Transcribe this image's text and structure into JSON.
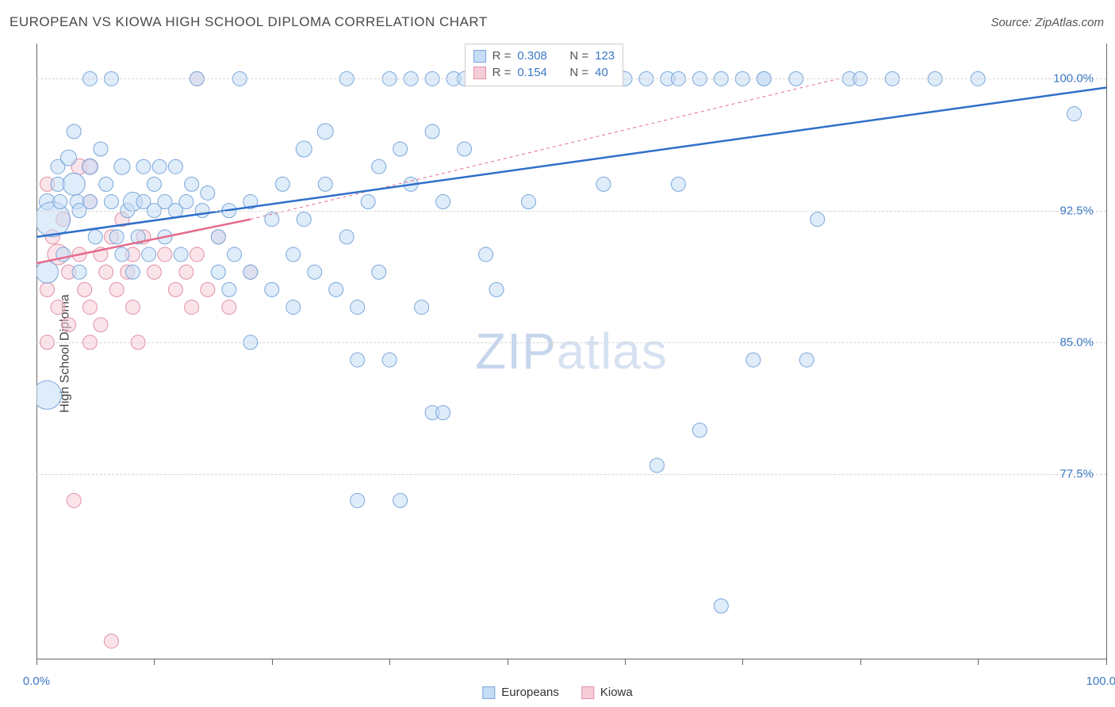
{
  "title": "EUROPEAN VS KIOWA HIGH SCHOOL DIPLOMA CORRELATION CHART",
  "title_color": "#4a4a4a",
  "source_label": "Source: ZipAtlas.com",
  "source_color": "#555555",
  "ylabel": "High School Diploma",
  "watermark_text_a": "ZIP",
  "watermark_text_b": "atlas",
  "chart": {
    "type": "scatter",
    "background_color": "#ffffff",
    "xlim": [
      0,
      100
    ],
    "ylim": [
      67,
      102
    ],
    "x_ticks_labels": {
      "0": "0.0%",
      "100": "100.0%"
    },
    "x_tick_positions": [
      0,
      11,
      22,
      33,
      44,
      55,
      66,
      77,
      88,
      100
    ],
    "y_gridlines": [
      77.5,
      85.0,
      92.5,
      100.0
    ],
    "y_gridline_labels": {
      "77.5": "77.5%",
      "85.0": "85.0%",
      "92.5": "92.5%",
      "100.0": "100.0%"
    },
    "grid_color": "#d6d6d6",
    "axis_color": "#666666",
    "tick_label_color": "#3b78c4",
    "tick_label_fontsize": 15
  },
  "series": {
    "europeans": {
      "label": "Europeans",
      "color_fill": "#c5ddf6",
      "color_stroke": "#7ba7d9",
      "trend_color": "#2f6fc9",
      "trend_width": 2.5,
      "trend_dash": "none",
      "R": "0.308",
      "N": "123",
      "trend": {
        "x1": 0,
        "y1": 91,
        "x2": 100,
        "y2": 99.5
      },
      "points": [
        {
          "x": 1,
          "y": 93,
          "r": 10
        },
        {
          "x": 1.5,
          "y": 92,
          "r": 22
        },
        {
          "x": 1,
          "y": 89,
          "r": 14
        },
        {
          "x": 1,
          "y": 82,
          "r": 18
        },
        {
          "x": 2,
          "y": 95,
          "r": 9
        },
        {
          "x": 2,
          "y": 94,
          "r": 9
        },
        {
          "x": 2.2,
          "y": 93,
          "r": 9
        },
        {
          "x": 2.5,
          "y": 90,
          "r": 9
        },
        {
          "x": 3,
          "y": 95.5,
          "r": 10
        },
        {
          "x": 3.5,
          "y": 94,
          "r": 14
        },
        {
          "x": 3.5,
          "y": 97,
          "r": 9
        },
        {
          "x": 3.8,
          "y": 93,
          "r": 9
        },
        {
          "x": 4,
          "y": 92.5,
          "r": 9
        },
        {
          "x": 4,
          "y": 89,
          "r": 9
        },
        {
          "x": 5,
          "y": 95,
          "r": 10
        },
        {
          "x": 5,
          "y": 93,
          "r": 9
        },
        {
          "x": 5.5,
          "y": 91,
          "r": 9
        },
        {
          "x": 5,
          "y": 100,
          "r": 9
        },
        {
          "x": 6,
          "y": 96,
          "r": 9
        },
        {
          "x": 6.5,
          "y": 94,
          "r": 9
        },
        {
          "x": 7,
          "y": 93,
          "r": 9
        },
        {
          "x": 7,
          "y": 100,
          "r": 9
        },
        {
          "x": 7.5,
          "y": 91,
          "r": 9
        },
        {
          "x": 8,
          "y": 95,
          "r": 10
        },
        {
          "x": 8,
          "y": 90,
          "r": 9
        },
        {
          "x": 8.5,
          "y": 92.5,
          "r": 9
        },
        {
          "x": 9,
          "y": 93,
          "r": 12
        },
        {
          "x": 9,
          "y": 89,
          "r": 9
        },
        {
          "x": 9.5,
          "y": 91,
          "r": 9
        },
        {
          "x": 10,
          "y": 95,
          "r": 9
        },
        {
          "x": 10,
          "y": 93,
          "r": 9
        },
        {
          "x": 10.5,
          "y": 90,
          "r": 9
        },
        {
          "x": 11,
          "y": 92.5,
          "r": 9
        },
        {
          "x": 11,
          "y": 94,
          "r": 9
        },
        {
          "x": 11.5,
          "y": 95,
          "r": 9
        },
        {
          "x": 12,
          "y": 93,
          "r": 9
        },
        {
          "x": 12,
          "y": 91,
          "r": 9
        },
        {
          "x": 13,
          "y": 92.5,
          "r": 9
        },
        {
          "x": 13,
          "y": 95,
          "r": 9
        },
        {
          "x": 13.5,
          "y": 90,
          "r": 9
        },
        {
          "x": 14,
          "y": 93,
          "r": 9
        },
        {
          "x": 14.5,
          "y": 94,
          "r": 9
        },
        {
          "x": 15,
          "y": 100,
          "r": 9
        },
        {
          "x": 15.5,
          "y": 92.5,
          "r": 9
        },
        {
          "x": 16,
          "y": 93.5,
          "r": 9
        },
        {
          "x": 17,
          "y": 91,
          "r": 9
        },
        {
          "x": 17,
          "y": 89,
          "r": 9
        },
        {
          "x": 18,
          "y": 92.5,
          "r": 9
        },
        {
          "x": 18,
          "y": 88,
          "r": 9
        },
        {
          "x": 18.5,
          "y": 90,
          "r": 9
        },
        {
          "x": 19,
          "y": 100,
          "r": 9
        },
        {
          "x": 20,
          "y": 93,
          "r": 9
        },
        {
          "x": 20,
          "y": 89,
          "r": 9
        },
        {
          "x": 20,
          "y": 85,
          "r": 9
        },
        {
          "x": 22,
          "y": 92,
          "r": 9
        },
        {
          "x": 22,
          "y": 88,
          "r": 9
        },
        {
          "x": 23,
          "y": 94,
          "r": 9
        },
        {
          "x": 24,
          "y": 90,
          "r": 9
        },
        {
          "x": 24,
          "y": 87,
          "r": 9
        },
        {
          "x": 25,
          "y": 96,
          "r": 10
        },
        {
          "x": 25,
          "y": 92,
          "r": 9
        },
        {
          "x": 26,
          "y": 89,
          "r": 9
        },
        {
          "x": 27,
          "y": 97,
          "r": 10
        },
        {
          "x": 27,
          "y": 94,
          "r": 9
        },
        {
          "x": 28,
          "y": 88,
          "r": 9
        },
        {
          "x": 29,
          "y": 91,
          "r": 9
        },
        {
          "x": 29,
          "y": 100,
          "r": 9
        },
        {
          "x": 30,
          "y": 87,
          "r": 9
        },
        {
          "x": 30,
          "y": 84,
          "r": 9
        },
        {
          "x": 30,
          "y": 76,
          "r": 9
        },
        {
          "x": 31,
          "y": 93,
          "r": 9
        },
        {
          "x": 32,
          "y": 89,
          "r": 9
        },
        {
          "x": 32,
          "y": 95,
          "r": 9
        },
        {
          "x": 33,
          "y": 100,
          "r": 9
        },
        {
          "x": 33,
          "y": 84,
          "r": 9
        },
        {
          "x": 34,
          "y": 96,
          "r": 9
        },
        {
          "x": 34,
          "y": 76,
          "r": 9
        },
        {
          "x": 35,
          "y": 100,
          "r": 9
        },
        {
          "x": 35,
          "y": 94,
          "r": 9
        },
        {
          "x": 36,
          "y": 87,
          "r": 9
        },
        {
          "x": 37,
          "y": 100,
          "r": 9
        },
        {
          "x": 37,
          "y": 97,
          "r": 9
        },
        {
          "x": 37,
          "y": 81,
          "r": 9
        },
        {
          "x": 38,
          "y": 81,
          "r": 9
        },
        {
          "x": 38,
          "y": 93,
          "r": 9
        },
        {
          "x": 39,
          "y": 100,
          "r": 9
        },
        {
          "x": 40,
          "y": 100,
          "r": 9
        },
        {
          "x": 40,
          "y": 96,
          "r": 9
        },
        {
          "x": 41,
          "y": 100,
          "r": 9
        },
        {
          "x": 42,
          "y": 90,
          "r": 9
        },
        {
          "x": 43,
          "y": 100,
          "r": 9
        },
        {
          "x": 43,
          "y": 88,
          "r": 9
        },
        {
          "x": 44,
          "y": 100,
          "r": 9
        },
        {
          "x": 45,
          "y": 100,
          "r": 9
        },
        {
          "x": 46,
          "y": 93,
          "r": 9
        },
        {
          "x": 48,
          "y": 100,
          "r": 9
        },
        {
          "x": 49,
          "y": 100,
          "r": 9
        },
        {
          "x": 50,
          "y": 100,
          "r": 9
        },
        {
          "x": 52,
          "y": 100,
          "r": 9
        },
        {
          "x": 53,
          "y": 94,
          "r": 9
        },
        {
          "x": 55,
          "y": 100,
          "r": 9
        },
        {
          "x": 57,
          "y": 100,
          "r": 9
        },
        {
          "x": 58,
          "y": 78,
          "r": 9
        },
        {
          "x": 59,
          "y": 100,
          "r": 9
        },
        {
          "x": 60,
          "y": 100,
          "r": 9
        },
        {
          "x": 60,
          "y": 94,
          "r": 9
        },
        {
          "x": 62,
          "y": 100,
          "r": 9
        },
        {
          "x": 62,
          "y": 80,
          "r": 9
        },
        {
          "x": 64,
          "y": 100,
          "r": 9
        },
        {
          "x": 64,
          "y": 70,
          "r": 9
        },
        {
          "x": 66,
          "y": 100,
          "r": 9
        },
        {
          "x": 67,
          "y": 84,
          "r": 9
        },
        {
          "x": 68,
          "y": 100,
          "r": 9
        },
        {
          "x": 68,
          "y": 100,
          "r": 9
        },
        {
          "x": 71,
          "y": 100,
          "r": 9
        },
        {
          "x": 72,
          "y": 84,
          "r": 9
        },
        {
          "x": 73,
          "y": 92,
          "r": 9
        },
        {
          "x": 76,
          "y": 100,
          "r": 9
        },
        {
          "x": 77,
          "y": 100,
          "r": 9
        },
        {
          "x": 80,
          "y": 100,
          "r": 9
        },
        {
          "x": 84,
          "y": 100,
          "r": 9
        },
        {
          "x": 88,
          "y": 100,
          "r": 9
        },
        {
          "x": 97,
          "y": 98,
          "r": 9
        }
      ]
    },
    "kiowa": {
      "label": "Kiowa",
      "color_fill": "#f5cdd8",
      "color_stroke": "#e190a5",
      "trend_color": "#e56b8c",
      "trend_main_width": 2.5,
      "trend_ext_width": 1,
      "trend_ext_dash": "4 4",
      "R": "0.154",
      "N": "40",
      "trend_main": {
        "x1": 0,
        "y1": 89.5,
        "x2": 20,
        "y2": 92
      },
      "trend_ext": {
        "x1": 20,
        "y1": 92,
        "x2": 75,
        "y2": 100
      },
      "points": [
        {
          "x": 1,
          "y": 94,
          "r": 9
        },
        {
          "x": 1.5,
          "y": 91,
          "r": 9
        },
        {
          "x": 1,
          "y": 88,
          "r": 9
        },
        {
          "x": 1,
          "y": 85,
          "r": 9
        },
        {
          "x": 2,
          "y": 90,
          "r": 13
        },
        {
          "x": 2,
          "y": 87,
          "r": 9
        },
        {
          "x": 2.5,
          "y": 92,
          "r": 9
        },
        {
          "x": 3,
          "y": 89,
          "r": 9
        },
        {
          "x": 3,
          "y": 86,
          "r": 9
        },
        {
          "x": 3.5,
          "y": 76,
          "r": 9
        },
        {
          "x": 4,
          "y": 95,
          "r": 10
        },
        {
          "x": 4,
          "y": 90,
          "r": 9
        },
        {
          "x": 4.5,
          "y": 88,
          "r": 9
        },
        {
          "x": 5,
          "y": 93,
          "r": 9
        },
        {
          "x": 5,
          "y": 87,
          "r": 9
        },
        {
          "x": 5,
          "y": 85,
          "r": 9
        },
        {
          "x": 5,
          "y": 95,
          "r": 9
        },
        {
          "x": 6,
          "y": 90,
          "r": 9
        },
        {
          "x": 6,
          "y": 86,
          "r": 9
        },
        {
          "x": 6.5,
          "y": 89,
          "r": 9
        },
        {
          "x": 7,
          "y": 91,
          "r": 9
        },
        {
          "x": 7,
          "y": 68,
          "r": 9
        },
        {
          "x": 7.5,
          "y": 88,
          "r": 9
        },
        {
          "x": 8,
          "y": 92,
          "r": 9
        },
        {
          "x": 8.5,
          "y": 89,
          "r": 9
        },
        {
          "x": 9,
          "y": 90,
          "r": 9
        },
        {
          "x": 9,
          "y": 87,
          "r": 9
        },
        {
          "x": 9.5,
          "y": 85,
          "r": 9
        },
        {
          "x": 10,
          "y": 91,
          "r": 9
        },
        {
          "x": 11,
          "y": 89,
          "r": 9
        },
        {
          "x": 12,
          "y": 90,
          "r": 9
        },
        {
          "x": 13,
          "y": 88,
          "r": 9
        },
        {
          "x": 14,
          "y": 89,
          "r": 9
        },
        {
          "x": 14.5,
          "y": 87,
          "r": 9
        },
        {
          "x": 15,
          "y": 90,
          "r": 9
        },
        {
          "x": 15,
          "y": 100,
          "r": 9
        },
        {
          "x": 16,
          "y": 88,
          "r": 9
        },
        {
          "x": 17,
          "y": 91,
          "r": 9
        },
        {
          "x": 18,
          "y": 87,
          "r": 9
        },
        {
          "x": 20,
          "y": 89,
          "r": 9
        }
      ]
    }
  },
  "stats_label_R": "R =",
  "stats_label_N": "N =",
  "stats_value_color": "#3b78c4",
  "legend_text_color": "#333333"
}
